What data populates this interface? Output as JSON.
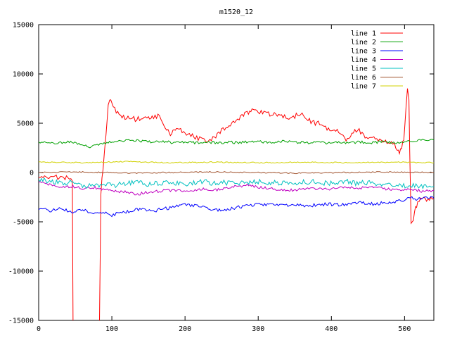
{
  "chart_data": {
    "type": "line",
    "title": "m1520_12",
    "xlabel": "",
    "ylabel": "",
    "xlim": [
      0,
      540
    ],
    "ylim": [
      -15000,
      15000
    ],
    "xticks": [
      0,
      100,
      200,
      300,
      400,
      500
    ],
    "yticks": [
      -15000,
      -10000,
      -5000,
      0,
      5000,
      10000,
      15000
    ],
    "grid": false,
    "legend_position": "top-right",
    "background": "#ffffff",
    "axis_color": "#000000",
    "series": [
      {
        "name": "line 1",
        "color": "#ff0000",
        "noise": 260,
        "points": [
          [
            0,
            -300
          ],
          [
            8,
            -420
          ],
          [
            16,
            -350
          ],
          [
            24,
            -480
          ],
          [
            32,
            -520
          ],
          [
            40,
            -600
          ],
          [
            46,
            -700
          ],
          [
            47,
            -15600
          ],
          [
            83,
            -15600
          ],
          [
            85,
            -2000
          ],
          [
            88,
            500
          ],
          [
            92,
            4000
          ],
          [
            95,
            6800
          ],
          [
            97,
            7600
          ],
          [
            100,
            6900
          ],
          [
            104,
            6400
          ],
          [
            108,
            6100
          ],
          [
            112,
            5900
          ],
          [
            116,
            5700
          ],
          [
            120,
            5500
          ],
          [
            126,
            5600
          ],
          [
            132,
            5400
          ],
          [
            138,
            5500
          ],
          [
            144,
            5400
          ],
          [
            150,
            5500
          ],
          [
            155,
            5800
          ],
          [
            159,
            5600
          ],
          [
            163,
            5900
          ],
          [
            167,
            5400
          ],
          [
            171,
            4900
          ],
          [
            175,
            4300
          ],
          [
            180,
            4000
          ],
          [
            185,
            4200
          ],
          [
            190,
            4400
          ],
          [
            196,
            4200
          ],
          [
            202,
            4000
          ],
          [
            208,
            3900
          ],
          [
            214,
            3600
          ],
          [
            220,
            3400
          ],
          [
            226,
            3300
          ],
          [
            232,
            3200
          ],
          [
            238,
            3600
          ],
          [
            244,
            3800
          ],
          [
            250,
            4200
          ],
          [
            256,
            4500
          ],
          [
            262,
            4800
          ],
          [
            268,
            5300
          ],
          [
            274,
            5500
          ],
          [
            280,
            5800
          ],
          [
            285,
            6200
          ],
          [
            290,
            6100
          ],
          [
            295,
            6400
          ],
          [
            300,
            6200
          ],
          [
            306,
            6000
          ],
          [
            312,
            6100
          ],
          [
            318,
            5900
          ],
          [
            324,
            6000
          ],
          [
            330,
            5800
          ],
          [
            336,
            5600
          ],
          [
            342,
            5500
          ],
          [
            348,
            5600
          ],
          [
            354,
            5900
          ],
          [
            360,
            5800
          ],
          [
            366,
            5600
          ],
          [
            372,
            5200
          ],
          [
            378,
            5000
          ],
          [
            384,
            5100
          ],
          [
            390,
            4700
          ],
          [
            396,
            4400
          ],
          [
            402,
            4500
          ],
          [
            408,
            4200
          ],
          [
            414,
            3700
          ],
          [
            420,
            3400
          ],
          [
            426,
            3800
          ],
          [
            432,
            4200
          ],
          [
            438,
            4300
          ],
          [
            444,
            3800
          ],
          [
            450,
            3200
          ],
          [
            456,
            3500
          ],
          [
            462,
            3300
          ],
          [
            468,
            3100
          ],
          [
            474,
            3200
          ],
          [
            480,
            3100
          ],
          [
            486,
            2800
          ],
          [
            490,
            2500
          ],
          [
            493,
            2100
          ],
          [
            496,
            2600
          ],
          [
            499,
            3500
          ],
          [
            502,
            6500
          ],
          [
            504,
            8400
          ],
          [
            506,
            7500
          ],
          [
            507,
            2000
          ],
          [
            509,
            -5200
          ],
          [
            512,
            -4700
          ],
          [
            515,
            -3600
          ],
          [
            518,
            -3000
          ],
          [
            522,
            -2800
          ],
          [
            526,
            -2700
          ],
          [
            530,
            -2900
          ],
          [
            534,
            -2600
          ],
          [
            538,
            -2500
          ],
          [
            540,
            -2600
          ]
        ]
      },
      {
        "name": "line 2",
        "color": "#00a000",
        "noise": 130,
        "points": [
          [
            0,
            3100
          ],
          [
            20,
            3000
          ],
          [
            40,
            3100
          ],
          [
            55,
            2900
          ],
          [
            70,
            2600
          ],
          [
            80,
            2800
          ],
          [
            95,
            3100
          ],
          [
            110,
            3200
          ],
          [
            125,
            3300
          ],
          [
            140,
            3200
          ],
          [
            155,
            3100
          ],
          [
            170,
            3200
          ],
          [
            185,
            3000
          ],
          [
            200,
            3100
          ],
          [
            215,
            3000
          ],
          [
            230,
            3100
          ],
          [
            245,
            3000
          ],
          [
            260,
            3100
          ],
          [
            275,
            3000
          ],
          [
            290,
            3200
          ],
          [
            305,
            3100
          ],
          [
            320,
            3000
          ],
          [
            335,
            3200
          ],
          [
            350,
            3100
          ],
          [
            365,
            3000
          ],
          [
            380,
            3100
          ],
          [
            395,
            3000
          ],
          [
            410,
            3100
          ],
          [
            425,
            3000
          ],
          [
            440,
            3100
          ],
          [
            455,
            3000
          ],
          [
            470,
            3100
          ],
          [
            485,
            3000
          ],
          [
            500,
            3100
          ],
          [
            515,
            3200
          ],
          [
            530,
            3300
          ],
          [
            540,
            3300
          ]
        ]
      },
      {
        "name": "line 3",
        "color": "#0000ff",
        "noise": 170,
        "points": [
          [
            0,
            -3600
          ],
          [
            15,
            -3900
          ],
          [
            30,
            -3700
          ],
          [
            45,
            -4000
          ],
          [
            60,
            -3800
          ],
          [
            75,
            -4200
          ],
          [
            90,
            -4000
          ],
          [
            100,
            -4400
          ],
          [
            110,
            -4100
          ],
          [
            125,
            -3900
          ],
          [
            140,
            -3700
          ],
          [
            155,
            -3900
          ],
          [
            170,
            -3700
          ],
          [
            185,
            -3500
          ],
          [
            200,
            -3300
          ],
          [
            215,
            -3400
          ],
          [
            230,
            -3600
          ],
          [
            245,
            -3800
          ],
          [
            260,
            -3700
          ],
          [
            275,
            -3500
          ],
          [
            290,
            -3300
          ],
          [
            305,
            -3200
          ],
          [
            320,
            -3300
          ],
          [
            335,
            -3400
          ],
          [
            350,
            -3300
          ],
          [
            365,
            -3400
          ],
          [
            380,
            -3300
          ],
          [
            395,
            -3200
          ],
          [
            410,
            -3300
          ],
          [
            425,
            -3200
          ],
          [
            440,
            -3100
          ],
          [
            455,
            -3200
          ],
          [
            470,
            -3100
          ],
          [
            485,
            -3000
          ],
          [
            500,
            -2800
          ],
          [
            510,
            -2600
          ],
          [
            520,
            -2700
          ],
          [
            530,
            -2500
          ],
          [
            540,
            -2600
          ]
        ]
      },
      {
        "name": "line 4",
        "color": "#c000c0",
        "noise": 140,
        "points": [
          [
            0,
            -900
          ],
          [
            15,
            -1200
          ],
          [
            30,
            -1500
          ],
          [
            45,
            -1400
          ],
          [
            60,
            -1600
          ],
          [
            75,
            -1500
          ],
          [
            90,
            -1700
          ],
          [
            105,
            -1900
          ],
          [
            120,
            -2000
          ],
          [
            135,
            -2200
          ],
          [
            150,
            -2000
          ],
          [
            165,
            -1900
          ],
          [
            180,
            -1800
          ],
          [
            195,
            -1900
          ],
          [
            210,
            -1800
          ],
          [
            225,
            -1700
          ],
          [
            240,
            -1800
          ],
          [
            255,
            -1600
          ],
          [
            270,
            -1400
          ],
          [
            285,
            -1300
          ],
          [
            300,
            -1500
          ],
          [
            315,
            -1600
          ],
          [
            330,
            -1700
          ],
          [
            345,
            -1800
          ],
          [
            360,
            -1700
          ],
          [
            375,
            -1600
          ],
          [
            390,
            -1700
          ],
          [
            405,
            -1600
          ],
          [
            420,
            -1500
          ],
          [
            435,
            -1600
          ],
          [
            450,
            -1500
          ],
          [
            465,
            -1600
          ],
          [
            480,
            -1700
          ],
          [
            495,
            -1800
          ],
          [
            510,
            -1700
          ],
          [
            525,
            -1900
          ],
          [
            540,
            -1800
          ]
        ]
      },
      {
        "name": "line 5",
        "color": "#00c0c0",
        "noise": 260,
        "points": [
          [
            0,
            -700
          ],
          [
            15,
            -900
          ],
          [
            30,
            -1100
          ],
          [
            45,
            -1000
          ],
          [
            60,
            -1300
          ],
          [
            75,
            -1400
          ],
          [
            90,
            -1100
          ],
          [
            105,
            -1300
          ],
          [
            120,
            -1100
          ],
          [
            135,
            -1000
          ],
          [
            150,
            -1200
          ],
          [
            165,
            -1100
          ],
          [
            180,
            -1000
          ],
          [
            195,
            -1200
          ],
          [
            210,
            -1100
          ],
          [
            225,
            -900
          ],
          [
            240,
            -1100
          ],
          [
            255,
            -1000
          ],
          [
            270,
            -1200
          ],
          [
            285,
            -1000
          ],
          [
            300,
            -900
          ],
          [
            315,
            -1100
          ],
          [
            330,
            -1000
          ],
          [
            345,
            -1200
          ],
          [
            360,
            -1000
          ],
          [
            375,
            -900
          ],
          [
            390,
            -1100
          ],
          [
            405,
            -1000
          ],
          [
            420,
            -900
          ],
          [
            435,
            -1100
          ],
          [
            450,
            -1000
          ],
          [
            465,
            -1200
          ],
          [
            480,
            -1300
          ],
          [
            495,
            -1400
          ],
          [
            510,
            -1300
          ],
          [
            525,
            -1500
          ],
          [
            540,
            -1400
          ]
        ]
      },
      {
        "name": "line 6",
        "color": "#a0522d",
        "noise": 60,
        "points": [
          [
            0,
            0
          ],
          [
            60,
            60
          ],
          [
            120,
            -60
          ],
          [
            180,
            0
          ],
          [
            240,
            60
          ],
          [
            300,
            0
          ],
          [
            360,
            -60
          ],
          [
            420,
            0
          ],
          [
            480,
            60
          ],
          [
            540,
            0
          ]
        ]
      },
      {
        "name": "line 7",
        "color": "#d0d000",
        "noise": 60,
        "points": [
          [
            0,
            1050
          ],
          [
            60,
            1000
          ],
          [
            120,
            1100
          ],
          [
            180,
            1000
          ],
          [
            240,
            1050
          ],
          [
            300,
            1000
          ],
          [
            360,
            1050
          ],
          [
            420,
            1000
          ],
          [
            480,
            1050
          ],
          [
            540,
            1000
          ]
        ]
      }
    ]
  }
}
